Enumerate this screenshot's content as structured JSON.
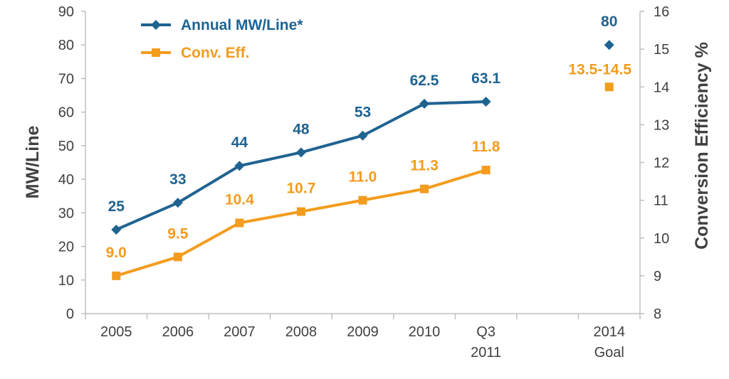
{
  "chart_data": {
    "type": "line",
    "categories": [
      [
        "2005"
      ],
      [
        "2006"
      ],
      [
        "2007"
      ],
      [
        "2008"
      ],
      [
        "2009"
      ],
      [
        "2010"
      ],
      [
        "Q3",
        "2011"
      ],
      [
        ""
      ],
      [
        "2014",
        "Goal"
      ]
    ],
    "y_left": {
      "label": "MW/Line",
      "range": [
        0,
        90
      ],
      "ticks": [
        0,
        10,
        20,
        30,
        40,
        50,
        60,
        70,
        80,
        90
      ]
    },
    "y_right": {
      "label": "Conversion Efficiency %",
      "range": [
        8,
        16
      ],
      "ticks": [
        8,
        9,
        10,
        11,
        12,
        13,
        14,
        15,
        16
      ]
    },
    "legend_position": "top-left",
    "grid": false,
    "series": [
      {
        "name": "Annual MW/Line*",
        "axis": "left",
        "color": "#1F6391",
        "marker": "diamond",
        "line_values": [
          25,
          33,
          44,
          48,
          53,
          62.5,
          63.1
        ],
        "line_labels": [
          "25",
          "33",
          "44",
          "48",
          "53",
          "62.5",
          "63.1"
        ],
        "goal": {
          "category_index": 8,
          "value": 80,
          "label": "80"
        }
      },
      {
        "name": "Conv. Eff.",
        "axis": "right",
        "color": "#F39C1E",
        "marker": "square",
        "line_values": [
          9.0,
          9.5,
          10.4,
          10.7,
          11.0,
          11.3,
          11.8
        ],
        "line_labels": [
          "9.0",
          "9.5",
          "10.4",
          "10.7",
          "11.0",
          "11.3",
          "11.8"
        ],
        "goal": {
          "category_index": 8,
          "value": 14.0,
          "label": "13.5-14.5"
        }
      }
    ]
  }
}
